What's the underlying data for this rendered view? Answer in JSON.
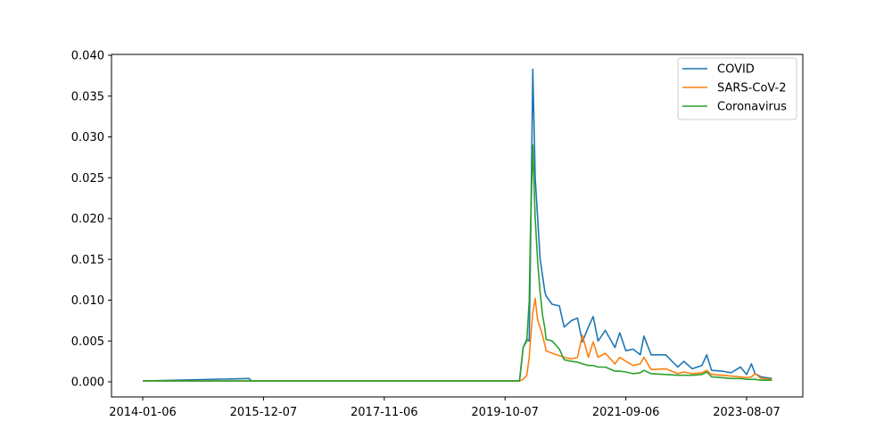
{
  "chart_data": {
    "type": "line",
    "title": "",
    "xlabel": "",
    "ylabel": "",
    "ylim": [
      -0.0019,
      0.0401
    ],
    "xlim": [
      "2013-11-03",
      "2024-03-10"
    ],
    "grid": false,
    "legend_position": "top-right",
    "x_ticks": [
      "2014-01-06",
      "2015-12-07",
      "2017-11-06",
      "2019-10-07",
      "2021-09-06",
      "2023-08-07"
    ],
    "y_ticks": [
      "0.000",
      "0.005",
      "0.010",
      "0.015",
      "0.020",
      "0.025",
      "0.030",
      "0.035",
      "0.040"
    ],
    "x": [
      "2014-01-06",
      "2015-09-14",
      "2015-09-28",
      "2019-12-30",
      "2020-01-20",
      "2020-02-10",
      "2020-02-24",
      "2020-03-02",
      "2020-03-16",
      "2020-03-30",
      "2020-04-13",
      "2020-04-27",
      "2020-05-11",
      "2020-05-25",
      "2020-06-01",
      "2020-07-06",
      "2020-08-17",
      "2020-09-14",
      "2020-10-26",
      "2020-11-30",
      "2020-12-28",
      "2021-02-01",
      "2021-03-01",
      "2021-03-29",
      "2021-05-10",
      "2021-07-05",
      "2021-08-02",
      "2021-09-06",
      "2021-10-18",
      "2021-11-29",
      "2021-12-20",
      "2022-01-31",
      "2022-04-25",
      "2022-07-04",
      "2022-08-08",
      "2022-09-26",
      "2022-11-21",
      "2022-12-19",
      "2023-01-16",
      "2023-03-20",
      "2023-05-08",
      "2023-07-03",
      "2023-08-07",
      "2023-09-04",
      "2023-09-25",
      "2023-10-30",
      "2024-01-01"
    ],
    "series": [
      {
        "name": "COVID",
        "color": "#1f77b4",
        "values": [
          0.0001,
          0.0004,
          0.0001,
          0.0001,
          0.0042,
          0.0052,
          0.005,
          0.015,
          0.0383,
          0.025,
          0.02,
          0.0151,
          0.013,
          0.011,
          0.0105,
          0.0095,
          0.0093,
          0.0067,
          0.0075,
          0.0078,
          0.0049,
          0.0067,
          0.008,
          0.005,
          0.0063,
          0.0042,
          0.006,
          0.0038,
          0.004,
          0.0033,
          0.0056,
          0.0033,
          0.0033,
          0.0018,
          0.0025,
          0.0016,
          0.002,
          0.0033,
          0.0014,
          0.0013,
          0.0011,
          0.0018,
          0.0009,
          0.0022,
          0.001,
          0.0006,
          0.0004
        ]
      },
      {
        "name": "SARS-CoV-2",
        "color": "#ff7f0e",
        "values": [
          0.0001,
          0.0001,
          0.0001,
          0.0001,
          0.0003,
          0.0008,
          0.003,
          0.005,
          0.0085,
          0.0102,
          0.0075,
          0.0067,
          0.0057,
          0.0045,
          0.0038,
          0.0035,
          0.0032,
          0.003,
          0.0028,
          0.003,
          0.0057,
          0.003,
          0.0049,
          0.003,
          0.0035,
          0.0022,
          0.003,
          0.0025,
          0.002,
          0.0022,
          0.003,
          0.0015,
          0.0016,
          0.001,
          0.0012,
          0.001,
          0.0011,
          0.0014,
          0.0009,
          0.0008,
          0.0007,
          0.0006,
          0.0005,
          0.0006,
          0.001,
          0.0004,
          0.0003
        ]
      },
      {
        "name": "Coronavirus",
        "color": "#2ca02c",
        "values": [
          0.0001,
          0.0001,
          0.0001,
          0.0001,
          0.0042,
          0.005,
          0.0099,
          0.018,
          0.029,
          0.02,
          0.0147,
          0.011,
          0.0082,
          0.0065,
          0.0052,
          0.005,
          0.004,
          0.0027,
          0.0025,
          0.0024,
          0.0022,
          0.002,
          0.002,
          0.0018,
          0.0018,
          0.0013,
          0.0013,
          0.0012,
          0.001,
          0.0011,
          0.0014,
          0.001,
          0.0009,
          0.0008,
          0.0008,
          0.0008,
          0.0009,
          0.0012,
          0.0006,
          0.0005,
          0.0004,
          0.0004,
          0.0003,
          0.0003,
          0.0003,
          0.0002,
          0.0002
        ]
      }
    ]
  }
}
